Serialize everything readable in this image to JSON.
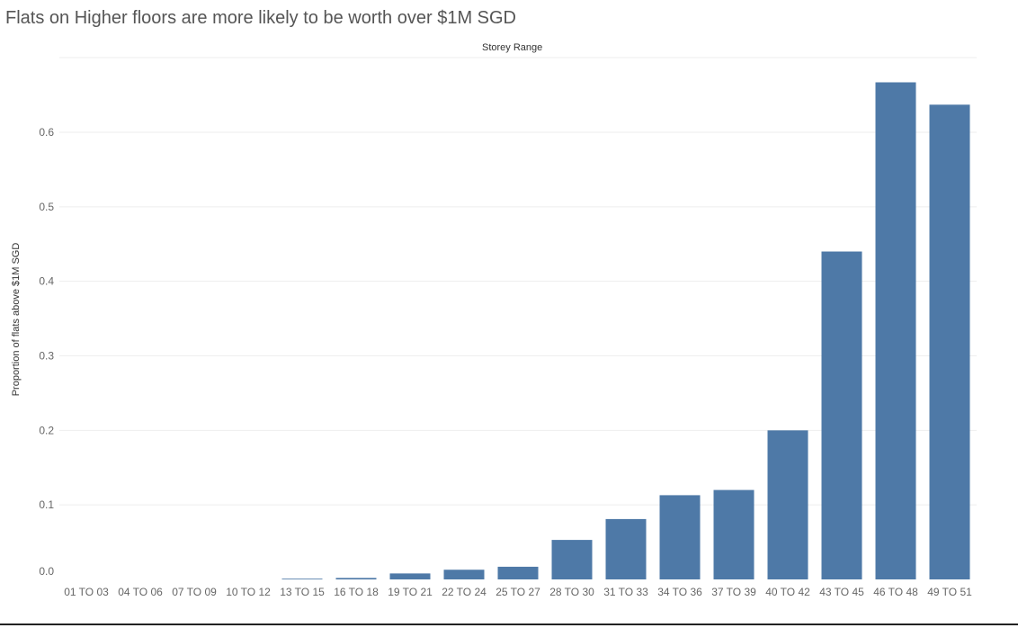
{
  "chart_data": {
    "type": "bar",
    "title": "Flats on Higher floors are more likely to be worth over $1M SGD",
    "xlabel": "Storey Range",
    "ylabel": "Proportion of flats above $1M SGD",
    "categories": [
      "01 TO 03",
      "04 TO 06",
      "07 TO 09",
      "10 TO 12",
      "13 TO 15",
      "16 TO 18",
      "19 TO 21",
      "22 TO 24",
      "25 TO 27",
      "28 TO 30",
      "31 TO 33",
      "34 TO 36",
      "37 TO 39",
      "40 TO 42",
      "43 TO 45",
      "46 TO 48",
      "49 TO 51"
    ],
    "values": [
      0.0,
      0.0,
      0.0,
      0.0,
      0.001,
      0.002,
      0.008,
      0.013,
      0.017,
      0.053,
      0.081,
      0.113,
      0.12,
      0.2,
      0.44,
      0.667,
      0.637
    ],
    "yticks": [
      "0.0",
      "0.1",
      "0.2",
      "0.3",
      "0.4",
      "0.5",
      "0.6"
    ],
    "ylim": [
      0,
      0.69
    ],
    "grid": true,
    "bar_color": "#4e79a7",
    "grid_color": "#eeeeee"
  }
}
